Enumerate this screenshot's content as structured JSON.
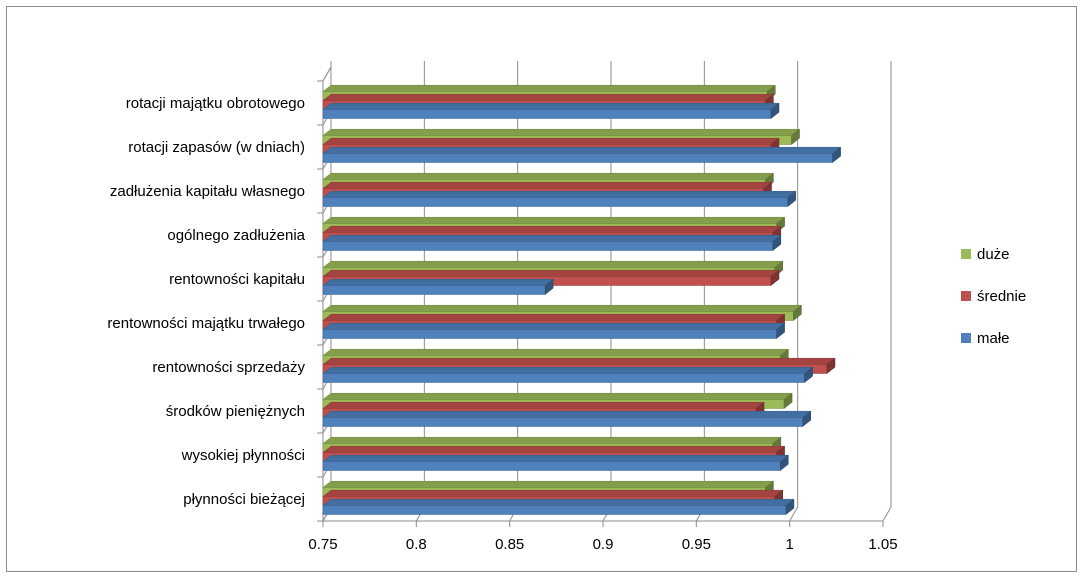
{
  "chart_data": {
    "type": "bar",
    "orientation": "horizontal",
    "style": "3d-clustered",
    "categories": [
      "rotacji majątku obrotowego",
      "rotacji zapasów (w dniach)",
      "zadłużenia kapitału własnego",
      "ogólnego zadłużenia",
      "rentowności kapitału",
      "rentowności majątku trwałego",
      "rentowności sprzedaży",
      "środków pieniężnych",
      "wysokiej płynności",
      "płynności bieżącej"
    ],
    "series": [
      {
        "name": "duże",
        "color": "#9bbb59",
        "values": [
          0.988,
          1.001,
          0.987,
          0.993,
          0.992,
          1.002,
          0.995,
          0.997,
          0.991,
          0.987
        ]
      },
      {
        "name": "średnie",
        "color": "#c0504d",
        "values": [
          0.987,
          0.99,
          0.986,
          0.991,
          0.99,
          0.993,
          1.02,
          0.982,
          0.993,
          0.992
        ]
      },
      {
        "name": "małe",
        "color": "#4f81bd",
        "values": [
          0.99,
          1.023,
          0.999,
          0.991,
          0.869,
          0.993,
          1.008,
          1.007,
          0.995,
          0.998
        ]
      }
    ],
    "xlim": [
      0.75,
      1.05
    ],
    "x_ticks": [
      "0.75",
      "0.8",
      "0.85",
      "0.9",
      "0.95",
      "1",
      "1.05"
    ],
    "x_tick_values": [
      0.75,
      0.8,
      0.85,
      0.9,
      0.95,
      1.0,
      1.05
    ],
    "grid": true,
    "legend": "right"
  }
}
